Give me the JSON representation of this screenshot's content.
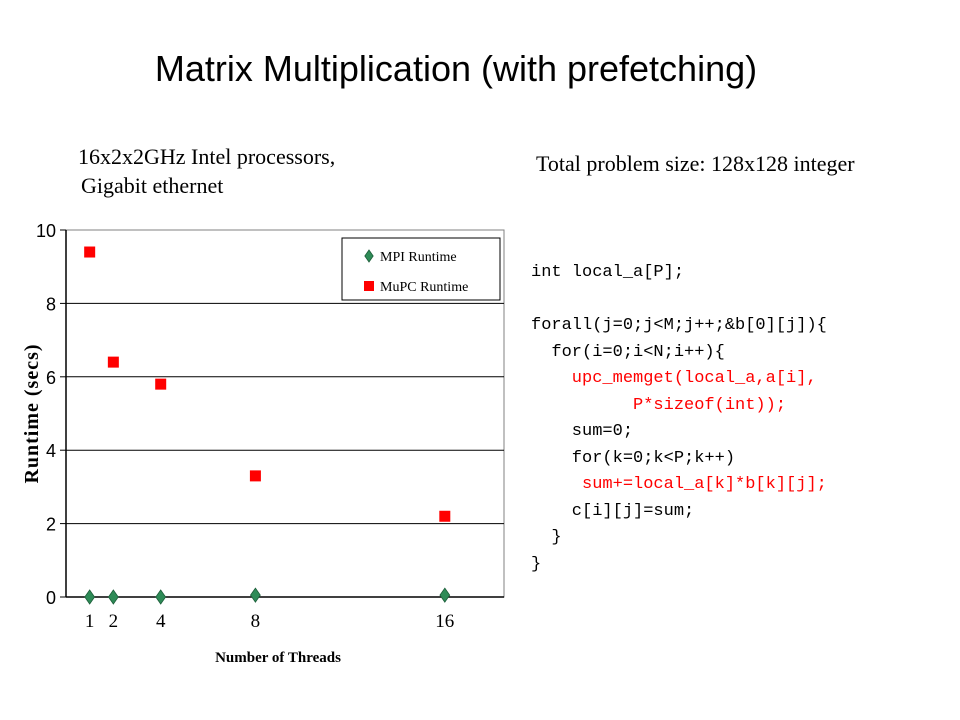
{
  "slide": {
    "title": "Matrix Multiplication (with prefetching)",
    "subtitle_line1": "16x2x2GHz Intel processors,",
    "subtitle_line2": "Gigabit ethernet",
    "problem_size": "Total problem size: 128x128 integer",
    "code_lines": [
      {
        "text": "int local_a[P];",
        "color": "#000000"
      },
      {
        "text": "",
        "color": "#000000"
      },
      {
        "text": "forall(j=0;j<M;j++;&b[0][j]){",
        "color": "#000000"
      },
      {
        "text": "  for(i=0;i<N;i++){",
        "color": "#000000"
      },
      {
        "text": "    upc_memget(local_a,a[i],",
        "color": "#ff0000"
      },
      {
        "text": "          P*sizeof(int));",
        "color": "#ff0000"
      },
      {
        "text": "    sum=0;",
        "color": "#000000"
      },
      {
        "text": "    for(k=0;k<P;k++)",
        "color": "#000000"
      },
      {
        "text": "     sum+=local_a[k]*b[k][j];",
        "color": "#ff0000"
      },
      {
        "text": "    c[i][j]=sum;",
        "color": "#000000"
      },
      {
        "text": "  }",
        "color": "#000000"
      },
      {
        "text": "}",
        "color": "#000000"
      }
    ]
  },
  "chart_data": {
    "type": "scatter",
    "title": "",
    "xlabel": "Number of Threads",
    "ylabel": "Runtime (secs)",
    "x_ticks": [
      "1",
      "2",
      "4",
      "8",
      "16"
    ],
    "y_ticks": [
      "0",
      "2",
      "4",
      "6",
      "8",
      "10"
    ],
    "ylim": [
      0,
      10
    ],
    "xlim": [
      0,
      18.5
    ],
    "grid": "horizontal",
    "legend_position": "top-right",
    "series": [
      {
        "name": "MPI Runtime",
        "marker": "diamond",
        "color": "#2e8b57",
        "x": [
          1,
          2,
          4,
          8,
          16
        ],
        "y": [
          0,
          0,
          0,
          0.05,
          0.05
        ]
      },
      {
        "name": "MuPC Runtime",
        "marker": "square",
        "color": "#ff0000",
        "x": [
          1,
          2,
          4,
          8,
          16
        ],
        "y": [
          9.4,
          6.4,
          5.8,
          3.3,
          2.2
        ]
      }
    ]
  }
}
